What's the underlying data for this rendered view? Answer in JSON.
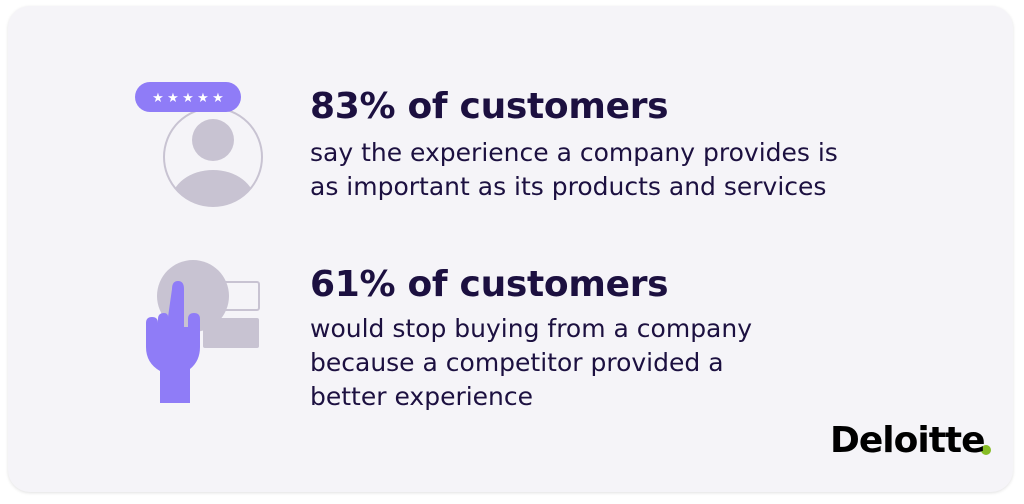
{
  "stats": [
    {
      "headline": "83% of customers",
      "lines": [
        "say the experience a company provides is",
        "as important as its products and services"
      ]
    },
    {
      "headline": "61% of customers",
      "lines": [
        "would stop buying from a company",
        "because a competitor provided a",
        "better experience"
      ]
    }
  ],
  "brand": {
    "name": "Deloitte"
  }
}
